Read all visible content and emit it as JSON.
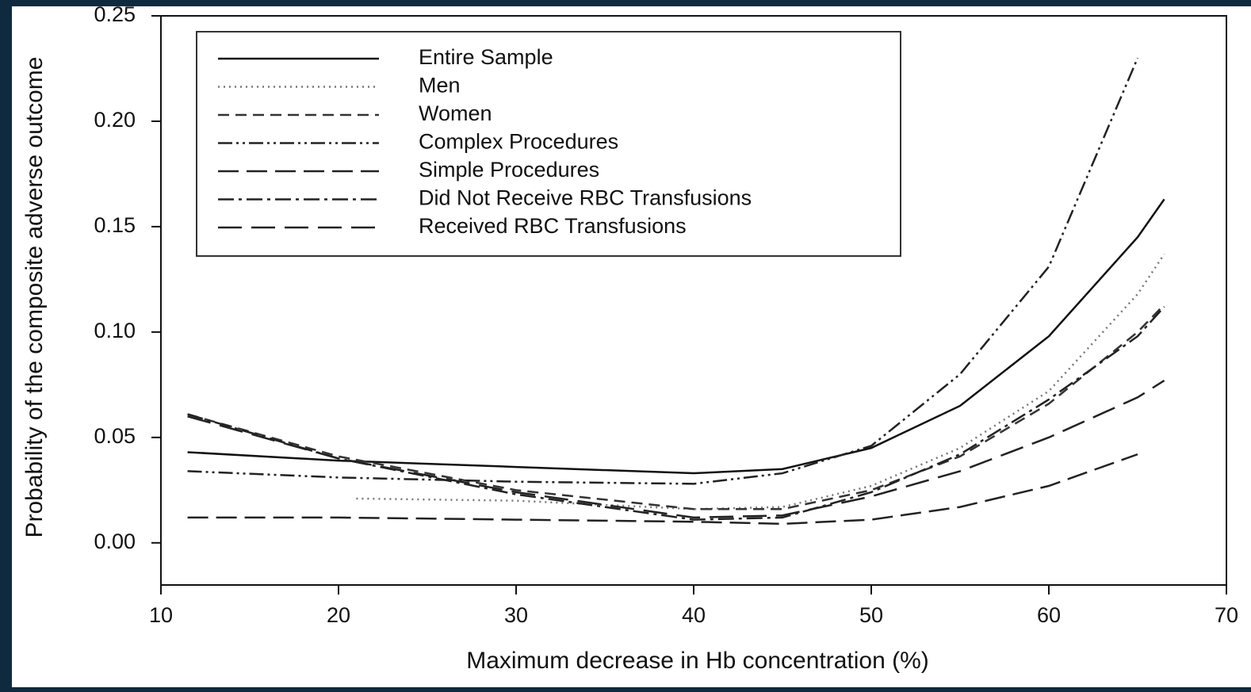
{
  "chart_data": {
    "type": "line",
    "x_label": "Maximum decrease in Hb concentration (%)",
    "y_label": "Probability of the composite adverse outcome",
    "xlim": [
      10,
      70
    ],
    "xticks": [
      10,
      20,
      30,
      40,
      50,
      60,
      70
    ],
    "ylim": [
      -0.02,
      0.25
    ],
    "yticks": [
      {
        "value": 0,
        "label": "0.00"
      },
      0.05,
      {
        "value": 0.1,
        "label": "0.10"
      },
      0.15,
      {
        "value": 0.2,
        "label": "0.20"
      },
      0.25
    ],
    "legend": "top-left",
    "series": [
      {
        "name": "Entire Sample",
        "color": "#111111",
        "dash": "none",
        "x": [
          11.5,
          20,
          30,
          40,
          45,
          50,
          55,
          60,
          65,
          66.5
        ],
        "values": [
          0.043,
          0.039,
          0.036,
          0.033,
          0.035,
          0.045,
          0.065,
          0.098,
          0.145,
          0.163
        ]
      },
      {
        "name": "Men",
        "color": "#777777",
        "dash": "2 5",
        "x": [
          21,
          30,
          40,
          45,
          50,
          55,
          60,
          65,
          66.5
        ],
        "values": [
          0.021,
          0.02,
          0.016,
          0.017,
          0.027,
          0.045,
          0.072,
          0.118,
          0.137
        ]
      },
      {
        "name": "Women",
        "color": "#333333",
        "dash": "14 8",
        "x": [
          11.5,
          20,
          30,
          40,
          45,
          50,
          55,
          60,
          65,
          66.5
        ],
        "values": [
          0.061,
          0.041,
          0.025,
          0.016,
          0.016,
          0.025,
          0.041,
          0.066,
          0.1,
          0.113
        ]
      },
      {
        "name": "Complex Procedures",
        "color": "#222222",
        "dash": "18 5 3 5 3 5",
        "x": [
          11.5,
          20,
          30,
          40,
          45,
          50,
          55,
          60,
          65
        ],
        "values": [
          0.034,
          0.031,
          0.029,
          0.028,
          0.033,
          0.046,
          0.08,
          0.131,
          0.23
        ]
      },
      {
        "name": "Simple Procedures",
        "color": "#222222",
        "dash": "26 10",
        "x": [
          11.5,
          20,
          30,
          40,
          45,
          50,
          55,
          60,
          65
        ],
        "values": [
          0.012,
          0.012,
          0.011,
          0.01,
          0.009,
          0.011,
          0.017,
          0.027,
          0.042
        ]
      },
      {
        "name": "Did Not Receive RBC Transfusions",
        "color": "#222222",
        "dash": "20 6 4 6",
        "x": [
          11.5,
          20,
          30,
          40,
          45,
          50,
          55,
          60,
          65,
          66.5
        ],
        "values": [
          0.061,
          0.04,
          0.023,
          0.011,
          0.012,
          0.024,
          0.042,
          0.068,
          0.098,
          0.112
        ]
      },
      {
        "name": "Received RBC Transfusions",
        "color": "#222222",
        "dash": "30 12",
        "x": [
          11.5,
          20,
          30,
          40,
          45,
          50,
          55,
          60,
          65,
          66.5
        ],
        "values": [
          0.06,
          0.04,
          0.024,
          0.012,
          0.013,
          0.022,
          0.034,
          0.05,
          0.069,
          0.077
        ]
      }
    ]
  }
}
